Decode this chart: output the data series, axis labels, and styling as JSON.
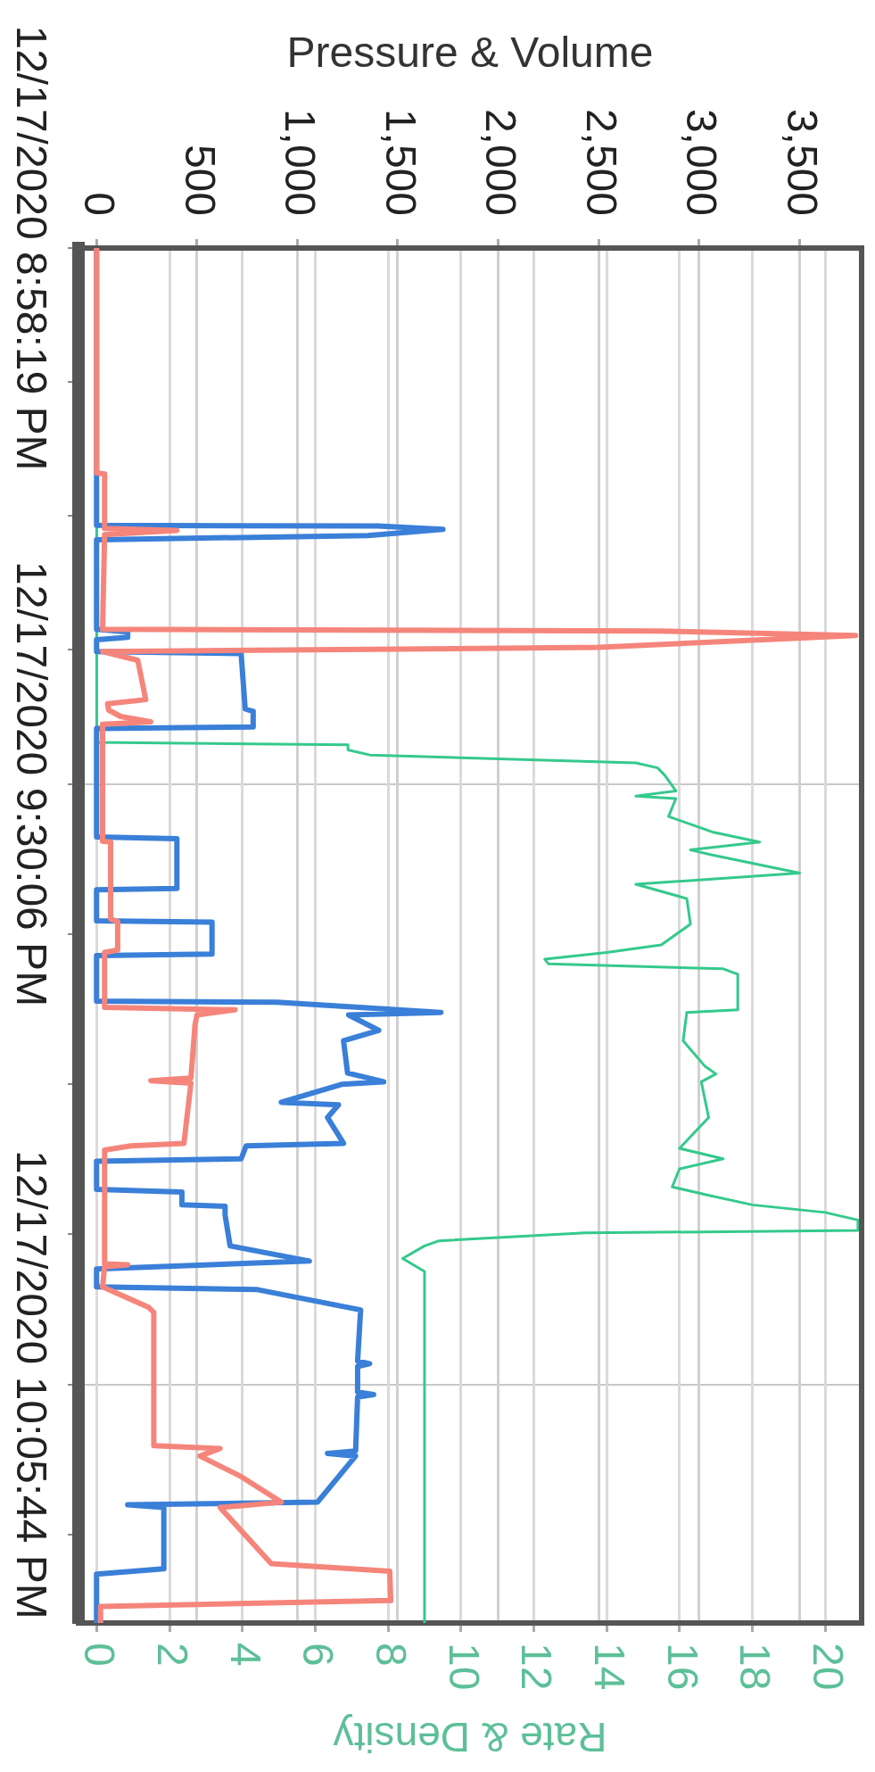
{
  "chart_data": {
    "type": "line",
    "orientation": "horizontal",
    "x2label": "Pressure & Volume",
    "xlabel": "Rate & Density",
    "ylim": [
      "2020-12-17T22:19:52",
      "2020-12-17T20:58:19"
    ],
    "yticks": [
      {
        "value": "2020-12-17T20:58:19",
        "label": "12/17/2020 8:58:19 PM"
      },
      {
        "value": "2020-12-17T21:06:16",
        "label": null
      },
      {
        "value": "2020-12-17T21:14:12",
        "label": null
      },
      {
        "value": "2020-12-17T21:22:09",
        "label": null
      },
      {
        "value": "2020-12-17T21:30:06",
        "label": "12/17/2020 9:30:06 PM"
      },
      {
        "value": "2020-12-17T21:39:00",
        "label": null
      },
      {
        "value": "2020-12-17T21:47:55",
        "label": null
      },
      {
        "value": "2020-12-17T21:56:49",
        "label": null
      },
      {
        "value": "2020-12-17T22:05:44",
        "label": "12/17/2020 10:05:44 PM"
      },
      {
        "value": "2020-12-17T22:14:38",
        "label": null
      }
    ],
    "x2lim": [
      -90,
      3810
    ],
    "x2ticks": [
      {
        "value": 0,
        "label": "0"
      },
      {
        "value": 500,
        "label": "500"
      },
      {
        "value": 1000,
        "label": "1,000"
      },
      {
        "value": 1500,
        "label": "1,500"
      },
      {
        "value": 2000,
        "label": "2,000"
      },
      {
        "value": 2500,
        "label": "2,500"
      },
      {
        "value": 3000,
        "label": "3,000"
      },
      {
        "value": 3500,
        "label": "3,500"
      }
    ],
    "xlim": [
      -0.5,
      21
    ],
    "xticks": [
      0,
      2,
      4,
      6,
      8,
      10,
      12,
      14,
      16,
      18,
      20
    ],
    "grid": true,
    "marker": "none",
    "line_style": "solid",
    "series": [
      {
        "color": "#f5857b",
        "axis": "x2",
        "x": [
          "2020-12-17T20:58:19",
          "2020-12-17T21:11:39",
          "2020-12-17T21:11:43",
          "2020-12-17T21:14:57",
          "2020-12-17T21:15:04",
          "2020-12-17T21:15:19",
          "2020-12-17T21:20:56",
          "2020-12-17T21:21:02",
          "2020-12-17T21:21:18",
          "2020-12-17T21:21:36",
          "2020-12-17T21:22:00",
          "2020-12-17T21:22:15",
          "2020-12-17T21:22:46",
          "2020-12-17T21:25:06",
          "2020-12-17T21:25:21",
          "2020-12-17T21:25:43",
          "2020-12-17T21:26:06",
          "2020-12-17T21:26:25",
          "2020-12-17T21:26:34",
          "2020-12-17T21:33:30",
          "2020-12-17T21:33:33",
          "2020-12-17T21:38:07",
          "2020-12-17T21:38:16",
          "2020-12-17T21:39:57",
          "2020-12-17T21:40:06",
          "2020-12-17T21:43:21",
          "2020-12-17T21:43:30",
          "2020-12-17T21:43:48",
          "2020-12-17T21:44:25",
          "2020-12-17T21:47:33",
          "2020-12-17T21:47:42",
          "2020-12-17T21:47:51",
          "2020-12-17T21:51:25",
          "2020-12-17T21:51:34",
          "2020-12-17T21:51:49",
          "2020-12-17T21:58:34",
          "2020-12-17T21:58:37",
          "2020-12-17T21:58:44",
          "2020-12-17T21:59:56",
          "2020-12-17T22:01:09",
          "2020-12-17T22:01:27",
          "2020-12-17T22:09:21",
          "2020-12-17T22:09:31",
          "2020-12-17T22:09:58",
          "2020-12-17T22:11:11",
          "2020-12-17T22:12:42",
          "2020-12-17T22:13:01",
          "2020-12-17T22:16:21",
          "2020-12-17T22:16:48",
          "2020-12-17T22:18:32",
          "2020-12-17T22:18:53",
          "2020-12-17T22:19:52"
        ],
        "values": [
          0,
          0,
          40,
          40,
          400,
          40,
          30,
          2800,
          3780,
          3220,
          2500,
          30,
          205,
          245,
          55,
          60,
          120,
          270,
          30,
          30,
          70,
          70,
          105,
          105,
          40,
          40,
          690,
          500,
          490,
          470,
          270,
          470,
          435,
          170,
          40,
          40,
          155,
          40,
          30,
          260,
          285,
          285,
          615,
          515,
          720,
          920,
          615,
          870,
          1460,
          1465,
          20,
          20
        ]
      },
      {
        "color": "#3a7fd8",
        "axis": "x2",
        "x": [
          "2020-12-17T20:58:19",
          "2020-12-17T21:14:46",
          "2020-12-17T21:14:48",
          "2020-12-17T21:15:00",
          "2020-12-17T21:15:22",
          "2020-12-17T21:15:37",
          "2020-12-17T21:20:56",
          "2020-12-17T21:21:05",
          "2020-12-17T21:21:24",
          "2020-12-17T21:21:33",
          "2020-12-17T21:22:15",
          "2020-12-17T21:22:22",
          "2020-12-17T21:25:39",
          "2020-12-17T21:25:48",
          "2020-12-17T21:26:43",
          "2020-12-17T21:26:49",
          "2020-12-17T21:33:15",
          "2020-12-17T21:33:21",
          "2020-12-17T21:36:18",
          "2020-12-17T21:36:23",
          "2020-12-17T21:38:13",
          "2020-12-17T21:38:18",
          "2020-12-17T21:40:11",
          "2020-12-17T21:40:17",
          "2020-12-17T21:42:59",
          "2020-12-17T21:43:03",
          "2020-12-17T21:43:39",
          "2020-12-17T21:43:48",
          "2020-12-17T21:44:43",
          "2020-12-17T21:45:20",
          "2020-12-17T21:47:15",
          "2020-12-17T21:47:46",
          "2020-12-17T21:47:55",
          "2020-12-17T21:48:59",
          "2020-12-17T21:49:08",
          "2020-12-17T21:49:53",
          "2020-12-17T21:51:25",
          "2020-12-17T21:51:34",
          "2020-12-17T21:52:20",
          "2020-12-17T21:52:29",
          "2020-12-17T21:54:09",
          "2020-12-17T21:54:18",
          "2020-12-17T21:55:04",
          "2020-12-17T21:55:09",
          "2020-12-17T21:55:40",
          "2020-12-17T21:57:30",
          "2020-12-17T21:58:24",
          "2020-12-17T21:58:52",
          "2020-12-17T21:59:56",
          "2020-12-17T22:00:05",
          "2020-12-17T22:01:18",
          "2020-12-17T22:04:20",
          "2020-12-17T22:04:29",
          "2020-12-17T22:04:39",
          "2020-12-17T22:06:10",
          "2020-12-17T22:06:19",
          "2020-12-17T22:06:28",
          "2020-12-17T22:09:40",
          "2020-12-17T22:09:49",
          "2020-12-17T22:09:58",
          "2020-12-17T22:12:42",
          "2020-12-17T22:12:51",
          "2020-12-17T22:13:01",
          "2020-12-17T22:16:39",
          "2020-12-17T22:16:58",
          "2020-12-17T22:19:52"
        ],
        "values": [
          0,
          0,
          1400,
          1725,
          1350,
          0,
          0,
          155,
          155,
          0,
          0,
          720,
          740,
          780,
          780,
          0,
          0,
          400,
          400,
          0,
          0,
          575,
          575,
          0,
          0,
          900,
          1715,
          1255,
          1405,
          1230,
          1250,
          1430,
          1220,
          920,
          1205,
          1150,
          1230,
          745,
          720,
          0,
          0,
          425,
          425,
          640,
          640,
          665,
          1060,
          0,
          0,
          795,
          1315,
          1300,
          1360,
          1300,
          1300,
          1380,
          1300,
          1290,
          1150,
          1290,
          1100,
          155,
          335,
          335,
          0,
          0
        ]
      },
      {
        "color": "#35c98c",
        "x": [
          "2020-12-17T20:58:19",
          "2020-12-17T21:27:38",
          "2020-12-17T21:27:47",
          "2020-12-17T21:28:05",
          "2020-12-17T21:28:23",
          "2020-12-17T21:28:51",
          "2020-12-17T21:29:09",
          "2020-12-17T21:29:36",
          "2020-12-17T21:30:31",
          "2020-12-17T21:30:49",
          "2020-12-17T21:30:58",
          "2020-12-17T21:32:02",
          "2020-12-17T21:32:57",
          "2020-12-17T21:33:33",
          "2020-12-17T21:34:01",
          "2020-12-17T21:34:19",
          "2020-12-17T21:35:23",
          "2020-12-17T21:36:03",
          "2020-12-17T21:36:54",
          "2020-12-17T21:38:25",
          "2020-12-17T21:39:39",
          "2020-12-17T21:40:06",
          "2020-12-17T21:40:30",
          "2020-12-17T21:40:46",
          "2020-12-17T21:41:04",
          "2020-12-17T21:41:23",
          "2020-12-17T21:43:30",
          "2020-12-17T21:43:39",
          "2020-12-17T21:45:20",
          "2020-12-17T21:46:51",
          "2020-12-17T21:47:18",
          "2020-12-17T21:47:46",
          "2020-12-17T21:49:53",
          "2020-12-17T21:51:43",
          "2020-12-17T21:52:20",
          "2020-12-17T21:52:56",
          "2020-12-17T21:54:00",
          "2020-12-17T21:54:27",
          "2020-12-17T21:55:04",
          "2020-12-17T21:55:31",
          "2020-12-17T21:55:58",
          "2020-12-17T21:56:35",
          "2020-12-17T21:56:44",
          "2020-12-17T21:57:12",
          "2020-12-17T21:57:30",
          "2020-12-17T21:58:15",
          "2020-12-17T21:59:01",
          "2020-12-17T22:19:52"
        ],
        "values": [
          0,
          0,
          6.9,
          6.9,
          7.5,
          14.8,
          15.4,
          15.6,
          15.9,
          14.8,
          15.9,
          15.7,
          16.9,
          18.2,
          16.3,
          16.9,
          19.3,
          14.8,
          16.2,
          16.3,
          15.5,
          14.0,
          12.3,
          12.4,
          17.2,
          17.6,
          17.6,
          16.2,
          16.1,
          16.7,
          17.0,
          16.6,
          16.8,
          16.0,
          17.2,
          16.0,
          15.8,
          16.7,
          18.0,
          20.0,
          20.9,
          20.9,
          13.4,
          9.4,
          9.0,
          8.4,
          9.0,
          9.0
        ]
      }
    ]
  }
}
